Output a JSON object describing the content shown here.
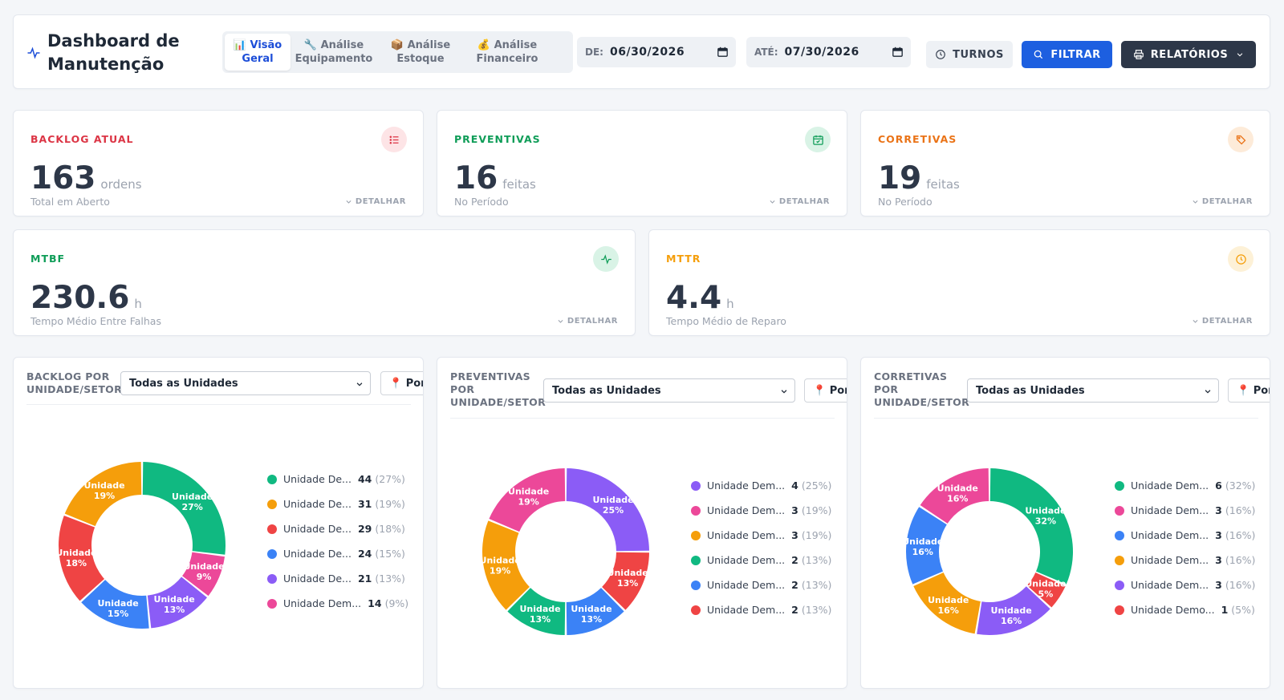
{
  "header": {
    "title": "Dashboard de Manutenção",
    "tabs": [
      {
        "icon": "📊",
        "label1": "Visão",
        "label2": "Geral"
      },
      {
        "icon": "🔧",
        "label1": "Análise",
        "label2": "Equipamento"
      },
      {
        "icon": "📦",
        "label1": "Análise",
        "label2": "Estoque"
      },
      {
        "icon": "💰",
        "label1": "Análise",
        "label2": "Financeiro"
      }
    ],
    "date_from_label": "DE:",
    "date_from": "06/30/2026",
    "date_to_label": "ATÉ:",
    "date_to": "07/30/2026",
    "turnos": "TURNOS",
    "filtrar": "FILTRAR",
    "relatorios": "RELATÓRIOS"
  },
  "kpis": {
    "backlog": {
      "label": "BACKLOG ATUAL",
      "value": "163",
      "unit": "ordens",
      "sub": "Total em Aberto",
      "detail": "DETALHAR",
      "color": "#dc3545"
    },
    "preventivas": {
      "label": "PREVENTIVAS",
      "value": "16",
      "unit": "feitas",
      "sub": "No Período",
      "detail": "DETALHAR",
      "color": "#0f9d58"
    },
    "corretivas": {
      "label": "CORRETIVAS",
      "value": "19",
      "unit": "feitas",
      "sub": "No Período",
      "detail": "DETALHAR",
      "color": "#ea7317"
    },
    "mtbf": {
      "label": "MTBF",
      "value": "230.6",
      "unit": "h",
      "sub": "Tempo Médio Entre Falhas",
      "detail": "DETALHAR",
      "color": "#0f9d58"
    },
    "mttr": {
      "label": "MTTR",
      "value": "4.4",
      "unit": "h",
      "sub": "Tempo Médio de Reparo",
      "detail": "DETALHAR",
      "color": "#f59e0b"
    }
  },
  "chart_data": [
    {
      "type": "pie",
      "title1": "BACKLOG POR",
      "title2": "UNIDADE/SETOR",
      "select": "Todas as Unidades",
      "pill": "📍 Por Unidade",
      "slices": [
        {
          "label": "Unidade",
          "legend": "Unidade De...",
          "value": 44,
          "pct": "27%",
          "color": "#10b981"
        },
        {
          "label": "Unidade",
          "legend": "Unidade Dem...",
          "value": 14,
          "pct": "9%",
          "color": "#ec4899"
        },
        {
          "label": "Unidade",
          "legend": "Unidade De...",
          "value": 21,
          "pct": "13%",
          "color": "#8b5cf6"
        },
        {
          "label": "Unidade",
          "legend": "Unidade De...",
          "value": 24,
          "pct": "15%",
          "color": "#3b82f6"
        },
        {
          "label": "Unidade",
          "legend": "Unidade De...",
          "value": 29,
          "pct": "18%",
          "color": "#ef4444"
        },
        {
          "label": "Unidade",
          "legend": "Unidade De...",
          "value": 31,
          "pct": "19%",
          "color": "#f59e0b"
        }
      ],
      "legend_order": [
        0,
        5,
        4,
        3,
        2,
        1
      ]
    },
    {
      "type": "pie",
      "title1": "PREVENTIVAS",
      "title2": "POR",
      "title3": "UNIDADE/SETOR",
      "select": "Todas as Unidades",
      "pill": "📍 Por Unidade",
      "slices": [
        {
          "label": "Unidade",
          "legend": "Unidade Dem...",
          "value": 4,
          "pct": "25%",
          "color": "#8b5cf6"
        },
        {
          "label": "Unidade",
          "legend": "Unidade Dem...",
          "value": 2,
          "pct": "13%",
          "color": "#ef4444"
        },
        {
          "label": "Unidade",
          "legend": "Unidade Dem...",
          "value": 2,
          "pct": "13%",
          "color": "#3b82f6"
        },
        {
          "label": "Unidade",
          "legend": "Unidade Dem...",
          "value": 2,
          "pct": "13%",
          "color": "#10b981"
        },
        {
          "label": "Unidade",
          "legend": "Unidade Dem...",
          "value": 3,
          "pct": "19%",
          "color": "#f59e0b"
        },
        {
          "label": "Unidade",
          "legend": "Unidade Dem...",
          "value": 3,
          "pct": "19%",
          "color": "#ec4899"
        }
      ],
      "legend_order": [
        0,
        5,
        4,
        3,
        2,
        1
      ]
    },
    {
      "type": "pie",
      "title1": "CORRETIVAS",
      "title2": "POR",
      "title3": "UNIDADE/SETOR",
      "select": "Todas as Unidades",
      "pill": "📍 Por Unidade",
      "slices": [
        {
          "label": "Unidade",
          "legend": "Unidade Dem...",
          "value": 6,
          "pct": "32%",
          "color": "#10b981"
        },
        {
          "label": "Unidade",
          "legend": "Unidade Demo...",
          "value": 1,
          "pct": "5%",
          "color": "#ef4444"
        },
        {
          "label": "Unidade",
          "legend": "Unidade Dem...",
          "value": 3,
          "pct": "16%",
          "color": "#8b5cf6"
        },
        {
          "label": "Unidade",
          "legend": "Unidade Dem...",
          "value": 3,
          "pct": "16%",
          "color": "#f59e0b"
        },
        {
          "label": "Unidade",
          "legend": "Unidade Dem...",
          "value": 3,
          "pct": "16%",
          "color": "#3b82f6"
        },
        {
          "label": "Unidade",
          "legend": "Unidade Dem...",
          "value": 3,
          "pct": "16%",
          "color": "#ec4899"
        }
      ],
      "legend_order": [
        0,
        5,
        4,
        3,
        2,
        1
      ]
    }
  ]
}
